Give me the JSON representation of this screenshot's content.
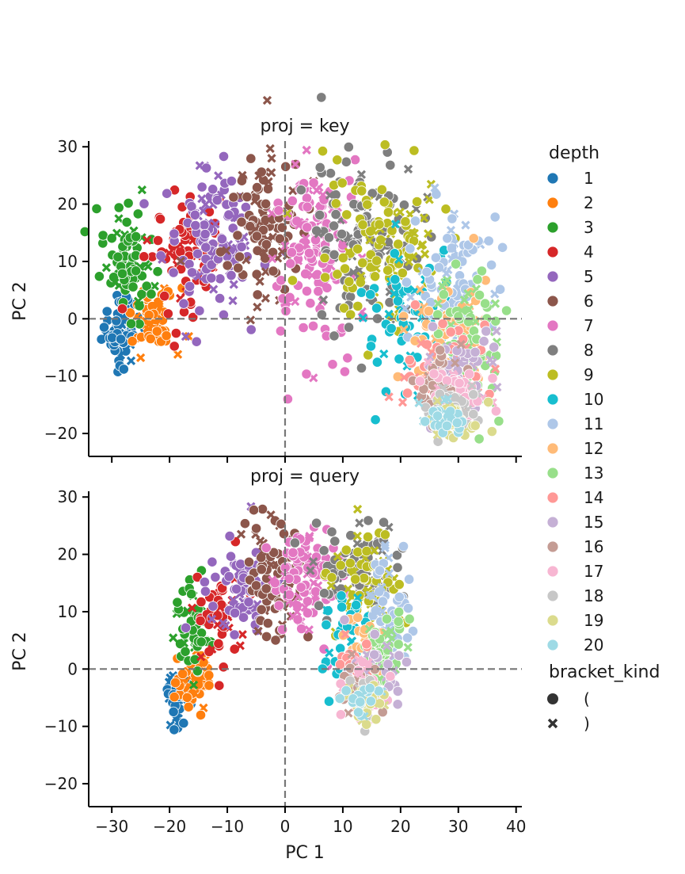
{
  "chart_data": {
    "type": "scatter",
    "xlabel": "PC 1",
    "ylabel": "PC 2",
    "xlim": [
      -34,
      41
    ],
    "ylim": [
      -24,
      31
    ],
    "xticks": [
      -30,
      -20,
      -10,
      0,
      10,
      20,
      30,
      40
    ],
    "yticks": [
      -20,
      -10,
      0,
      10,
      20,
      30
    ],
    "reference_lines": {
      "x": 0,
      "y": 0,
      "style": "dashed",
      "color": "#777777"
    },
    "legend": {
      "placement": "right",
      "hue_title": "depth",
      "style_title": "bracket_kind",
      "styles": [
        {
          "label": "(",
          "marker": "circle"
        },
        {
          "label": ")",
          "marker": "x"
        }
      ]
    },
    "depths": [
      {
        "label": "1",
        "color": "#1f77b4"
      },
      {
        "label": "2",
        "color": "#ff7f0e"
      },
      {
        "label": "3",
        "color": "#2ca02c"
      },
      {
        "label": "4",
        "color": "#d62728"
      },
      {
        "label": "5",
        "color": "#9467bd"
      },
      {
        "label": "6",
        "color": "#8c564b"
      },
      {
        "label": "7",
        "color": "#e377c2"
      },
      {
        "label": "8",
        "color": "#7f7f7f"
      },
      {
        "label": "9",
        "color": "#bcbd22"
      },
      {
        "label": "10",
        "color": "#17becf"
      },
      {
        "label": "11",
        "color": "#aec7e8"
      },
      {
        "label": "12",
        "color": "#ffbb78"
      },
      {
        "label": "13",
        "color": "#98df8a"
      },
      {
        "label": "14",
        "color": "#ff9896"
      },
      {
        "label": "15",
        "color": "#c5b0d5"
      },
      {
        "label": "16",
        "color": "#c49c94"
      },
      {
        "label": "17",
        "color": "#f7b6d2"
      },
      {
        "label": "18",
        "color": "#c7c7c7"
      },
      {
        "label": "19",
        "color": "#dbdb8d"
      },
      {
        "label": "20",
        "color": "#9edae5"
      }
    ],
    "panels": [
      {
        "title": "proj = key",
        "clusters": [
          {
            "depth": 1,
            "cx": -28.5,
            "cy": -2,
            "sx": 1.6,
            "sy": 3.0,
            "n": 70
          },
          {
            "depth": 2,
            "cx": -23,
            "cy": 0,
            "sx": 2.2,
            "sy": 2.8,
            "n": 60
          },
          {
            "depth": 3,
            "cx": -27,
            "cy": 10,
            "sx": 2.2,
            "sy": 4.5,
            "n": 80
          },
          {
            "depth": 4,
            "cx": -18,
            "cy": 11,
            "sx": 3.0,
            "sy": 6.0,
            "n": 80
          },
          {
            "depth": 5,
            "cx": -13,
            "cy": 14,
            "sx": 4.0,
            "sy": 6.0,
            "n": 110
          },
          {
            "depth": 6,
            "cx": -4,
            "cy": 16,
            "sx": 3.5,
            "sy": 7.0,
            "n": 110
          },
          {
            "depth": 7,
            "cx": 5,
            "cy": 13,
            "sx": 4.0,
            "sy": 8.0,
            "n": 130
          },
          {
            "depth": 8,
            "cx": 14,
            "cy": 14,
            "sx": 5.0,
            "sy": 7.0,
            "n": 120
          },
          {
            "depth": 9,
            "cx": 17,
            "cy": 12,
            "sx": 5.0,
            "sy": 7.0,
            "n": 110
          },
          {
            "depth": 10,
            "cx": 22,
            "cy": 0,
            "sx": 5.0,
            "sy": 6.0,
            "n": 80
          },
          {
            "depth": 11,
            "cx": 30,
            "cy": 6,
            "sx": 3.5,
            "sy": 7.0,
            "n": 100
          },
          {
            "depth": 12,
            "cx": 28,
            "cy": -3,
            "sx": 3.5,
            "sy": 5.0,
            "n": 70
          },
          {
            "depth": 13,
            "cx": 32,
            "cy": -5,
            "sx": 3.0,
            "sy": 6.0,
            "n": 80
          },
          {
            "depth": 14,
            "cx": 27,
            "cy": -9,
            "sx": 3.0,
            "sy": 4.0,
            "n": 60
          },
          {
            "depth": 15,
            "cx": 30,
            "cy": -10,
            "sx": 3.0,
            "sy": 4.5,
            "n": 70
          },
          {
            "depth": 16,
            "cx": 28,
            "cy": -13,
            "sx": 2.5,
            "sy": 3.0,
            "n": 60
          },
          {
            "depth": 17,
            "cx": 30,
            "cy": -14,
            "sx": 2.5,
            "sy": 3.0,
            "n": 50
          },
          {
            "depth": 18,
            "cx": 29,
            "cy": -16,
            "sx": 2.5,
            "sy": 2.5,
            "n": 40
          },
          {
            "depth": 19,
            "cx": 29,
            "cy": -18,
            "sx": 2.5,
            "sy": 2.0,
            "n": 40
          },
          {
            "depth": 20,
            "cx": 27,
            "cy": -17,
            "sx": 2.0,
            "sy": 2.0,
            "n": 30
          }
        ]
      },
      {
        "title": "proj = query",
        "clusters": [
          {
            "depth": 1,
            "cx": -18.5,
            "cy": -5,
            "sx": 0.9,
            "sy": 2.0,
            "n": 50
          },
          {
            "depth": 2,
            "cx": -16,
            "cy": -2,
            "sx": 1.5,
            "sy": 3.0,
            "n": 50
          },
          {
            "depth": 3,
            "cx": -16,
            "cy": 7,
            "sx": 1.5,
            "sy": 3.5,
            "n": 60
          },
          {
            "depth": 4,
            "cx": -11,
            "cy": 9,
            "sx": 2.0,
            "sy": 4.0,
            "n": 60
          },
          {
            "depth": 5,
            "cx": -7,
            "cy": 14,
            "sx": 3.0,
            "sy": 4.0,
            "n": 80
          },
          {
            "depth": 6,
            "cx": -2,
            "cy": 16,
            "sx": 2.5,
            "sy": 5.0,
            "n": 80
          },
          {
            "depth": 7,
            "cx": 4,
            "cy": 16,
            "sx": 3.0,
            "sy": 5.0,
            "n": 90
          },
          {
            "depth": 8,
            "cx": 12,
            "cy": 18,
            "sx": 3.5,
            "sy": 4.5,
            "n": 90
          },
          {
            "depth": 9,
            "cx": 14,
            "cy": 15,
            "sx": 3.0,
            "sy": 5.0,
            "n": 70
          },
          {
            "depth": 10,
            "cx": 11,
            "cy": 5,
            "sx": 2.5,
            "sy": 4.5,
            "n": 50
          },
          {
            "depth": 11,
            "cx": 18,
            "cy": 8,
            "sx": 2.0,
            "sy": 5.0,
            "n": 60
          },
          {
            "depth": 12,
            "cx": 14,
            "cy": 4,
            "sx": 2.0,
            "sy": 3.0,
            "n": 40
          },
          {
            "depth": 13,
            "cx": 17,
            "cy": 3,
            "sx": 2.0,
            "sy": 3.0,
            "n": 50
          },
          {
            "depth": 14,
            "cx": 13,
            "cy": 0,
            "sx": 1.8,
            "sy": 2.5,
            "n": 40
          },
          {
            "depth": 15,
            "cx": 15,
            "cy": -1,
            "sx": 2.0,
            "sy": 3.0,
            "n": 40
          },
          {
            "depth": 16,
            "cx": 13,
            "cy": -3,
            "sx": 2.0,
            "sy": 2.5,
            "n": 40
          },
          {
            "depth": 17,
            "cx": 14,
            "cy": -4,
            "sx": 1.8,
            "sy": 2.0,
            "n": 35
          },
          {
            "depth": 18,
            "cx": 14,
            "cy": -5,
            "sx": 1.5,
            "sy": 2.0,
            "n": 25
          },
          {
            "depth": 19,
            "cx": 14,
            "cy": -6,
            "sx": 1.5,
            "sy": 1.8,
            "n": 25
          },
          {
            "depth": 20,
            "cx": 13,
            "cy": -5,
            "sx": 1.5,
            "sy": 1.5,
            "n": 20
          }
        ]
      }
    ]
  }
}
